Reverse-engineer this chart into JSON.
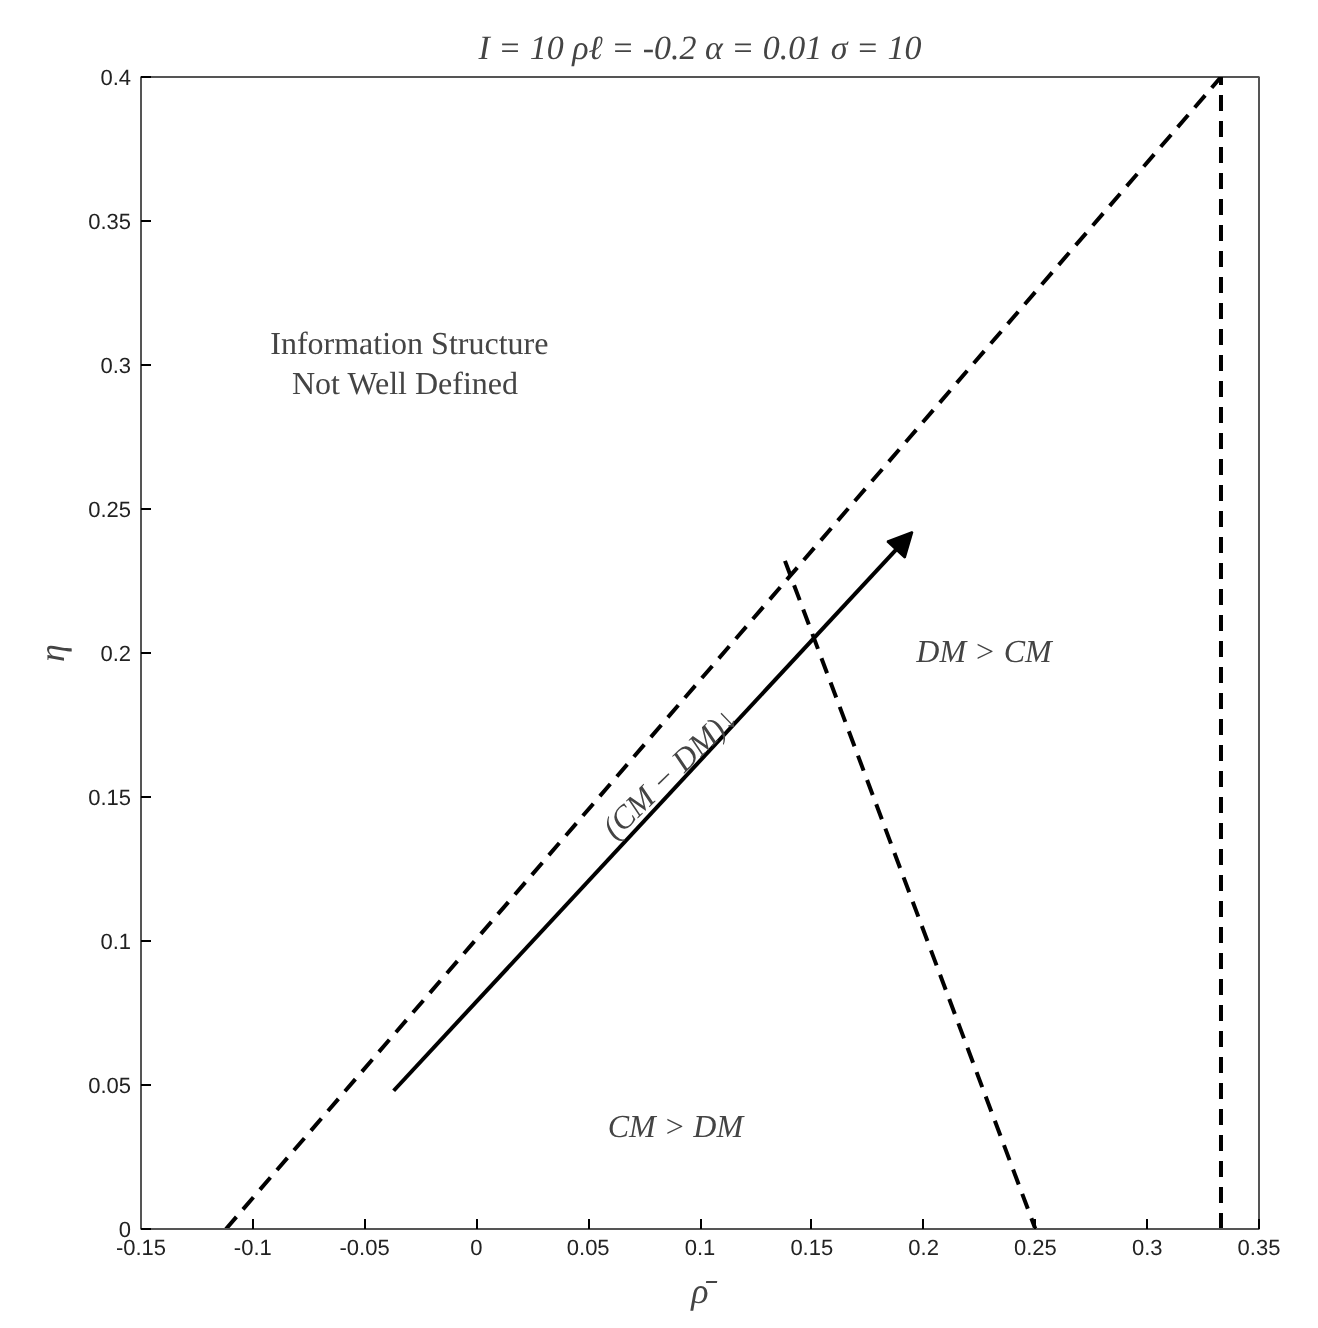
{
  "chart_data": {
    "type": "line",
    "title": "I = 10 ρℓ = -0.2 α = 0.01 σ = 10",
    "xlabel": "ρ̄",
    "ylabel": "η",
    "xlim": [
      -0.15,
      0.35
    ],
    "xticks": [
      -0.15,
      -0.1,
      -0.05,
      0,
      0.05,
      0.1,
      0.15,
      0.2,
      0.25,
      0.3,
      0.35
    ],
    "ylim": [
      0,
      0.4
    ],
    "yticks": [
      0,
      0.05,
      0.1,
      0.15,
      0.2,
      0.25,
      0.3,
      0.35,
      0.4
    ],
    "grid": false,
    "marker": "none",
    "series": [
      {
        "color": "#000000",
        "line_style": "dashed",
        "x": [
          -0.112,
          0.333
        ],
        "values": [
          0,
          0.4
        ]
      },
      {
        "color": "#000000",
        "line_style": "dashed",
        "x": [
          0.333,
          0.333
        ],
        "values": [
          0,
          0.4
        ]
      },
      {
        "color": "#000000",
        "line_style": "dashed",
        "x": [
          0.138,
          0.25
        ],
        "values": [
          0.232,
          0
        ]
      }
    ],
    "annotations": [
      "Information Structure\n Not Well Defined",
      "DM > CM",
      "CM > DM",
      "(CM − DM)↓"
    ]
  }
}
